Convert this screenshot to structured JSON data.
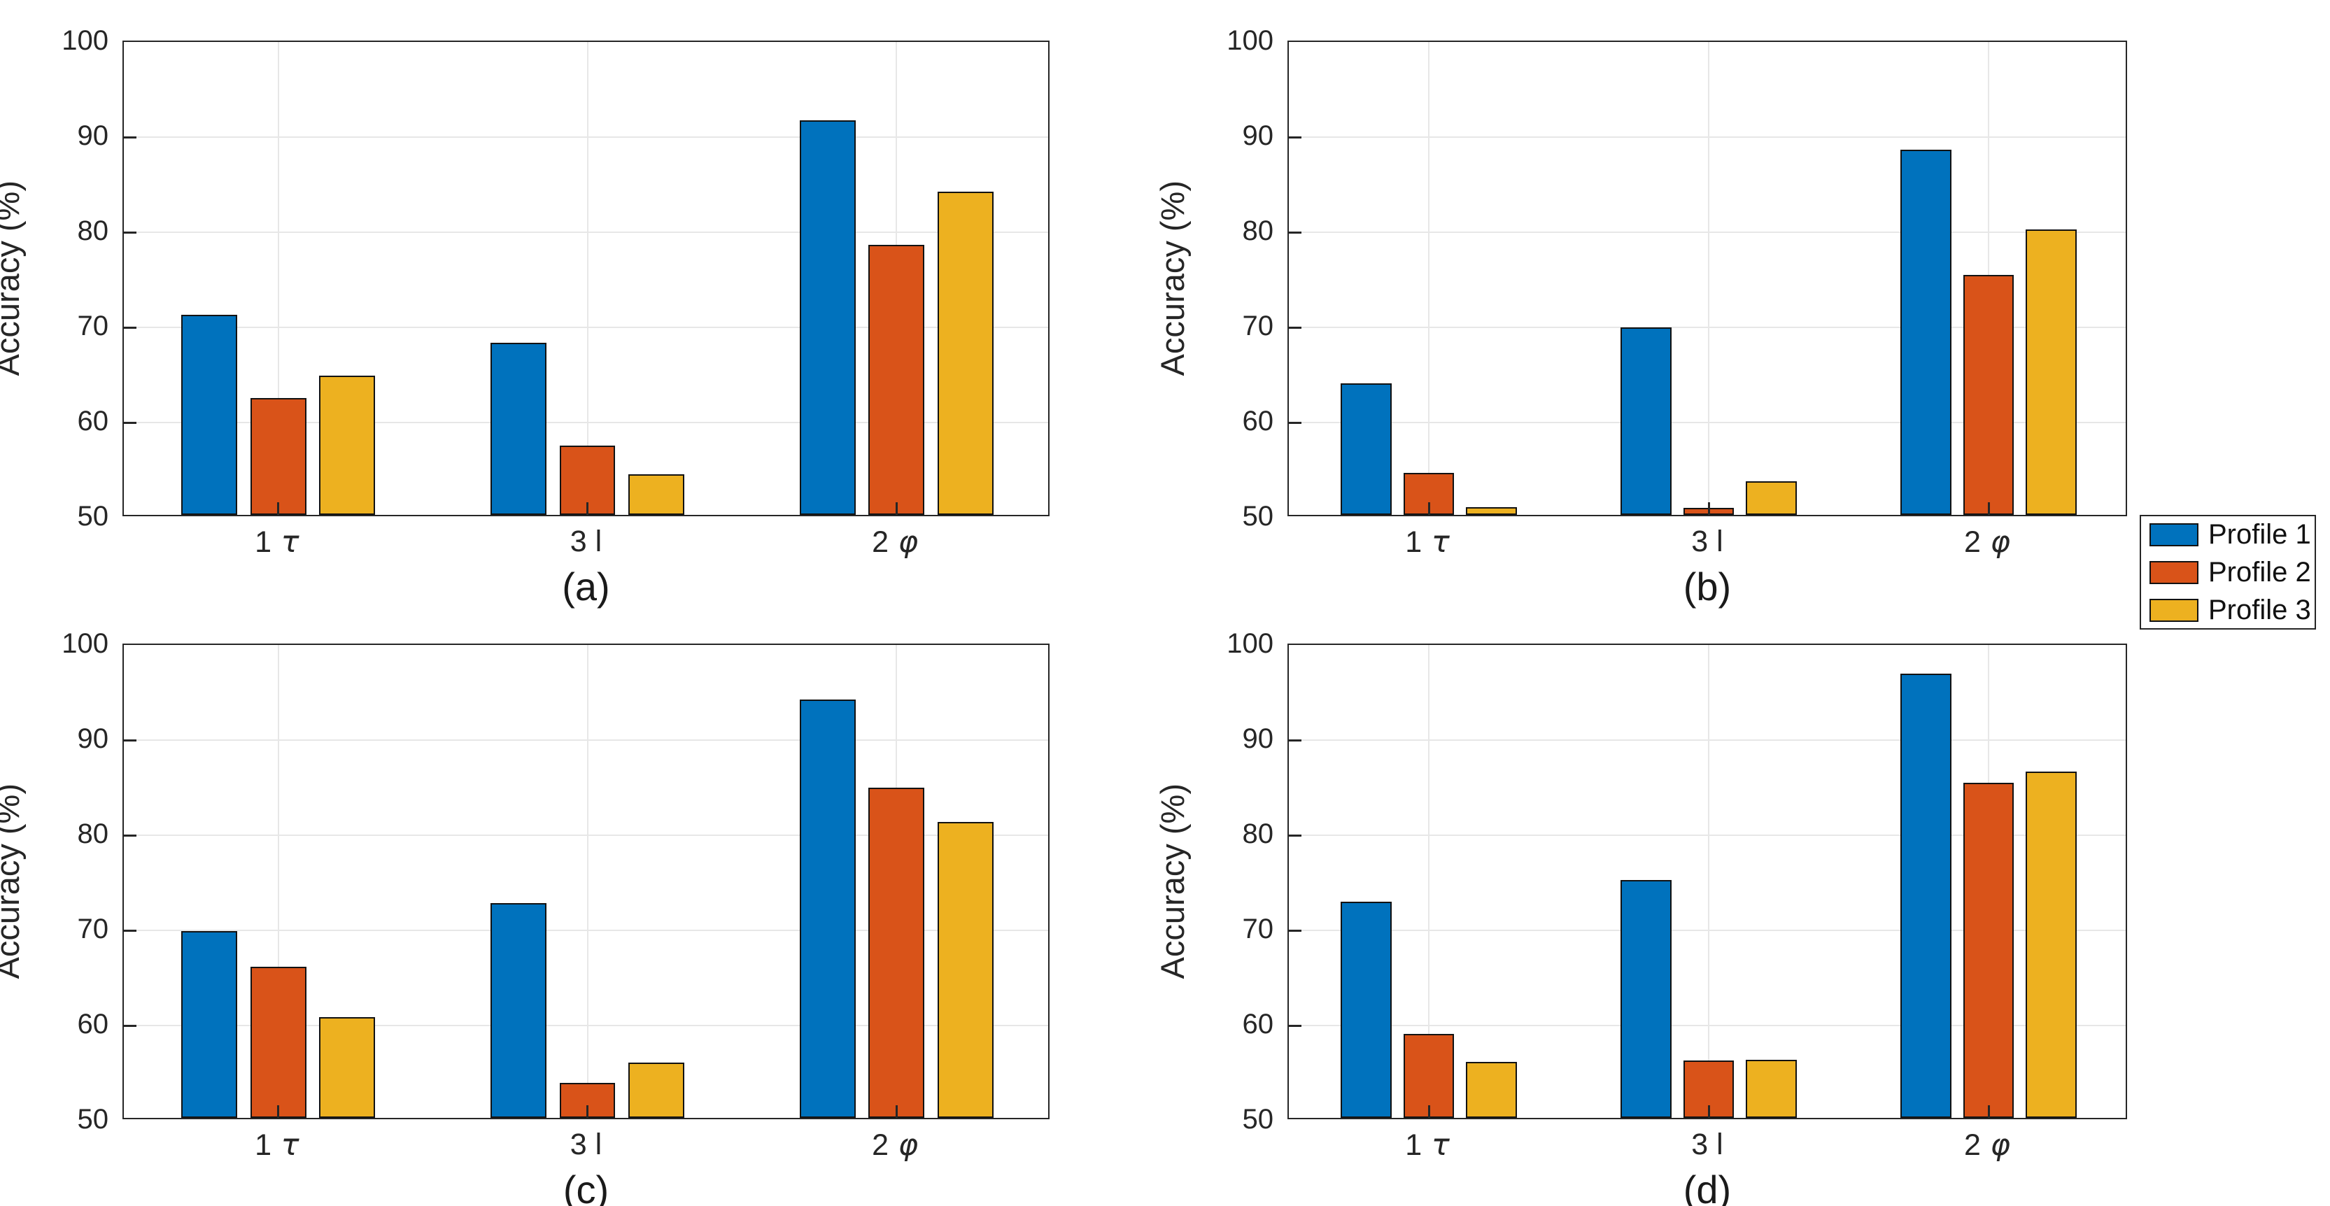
{
  "figure": {
    "ylabel": "Accuracy (%)",
    "yticks": [
      50,
      60,
      70,
      80,
      90,
      100
    ],
    "ylim": [
      50,
      100
    ],
    "categories": [
      "1 τ",
      "3 l",
      "2 φ"
    ],
    "captions": [
      "(a)",
      "(b)",
      "(c)",
      "(d)"
    ]
  },
  "colors": {
    "profile1": "#0072BD",
    "profile2": "#D95319",
    "profile3": "#EDB120",
    "bar_edge": "#121212",
    "grid": "#e7e7e7",
    "axis": "#262626",
    "text": "#262626",
    "background": "#ffffff"
  },
  "legend": {
    "position": "outside-right-center",
    "items": [
      {
        "label": "Profile 1",
        "color": "#0072BD"
      },
      {
        "label": "Profile 2",
        "color": "#D95319"
      },
      {
        "label": "Profile 3",
        "color": "#EDB120"
      }
    ]
  },
  "chart_data": [
    {
      "type": "bar",
      "subplot": "(a)",
      "title": "",
      "xlabel": "",
      "ylabel": "Accuracy (%)",
      "ylim": [
        50,
        100
      ],
      "yticks": [
        50,
        60,
        70,
        80,
        90,
        100
      ],
      "grid": true,
      "categories": [
        "1 τ",
        "3 l",
        "2 φ"
      ],
      "series": [
        {
          "name": "Profile 1",
          "values": [
            71.0,
            68.1,
            91.5
          ]
        },
        {
          "name": "Profile 2",
          "values": [
            62.3,
            57.3,
            78.4
          ]
        },
        {
          "name": "Profile 3",
          "values": [
            64.6,
            54.3,
            84.0
          ]
        }
      ]
    },
    {
      "type": "bar",
      "subplot": "(b)",
      "title": "",
      "xlabel": "",
      "ylabel": "Accuracy (%)",
      "ylim": [
        50,
        100
      ],
      "yticks": [
        50,
        60,
        70,
        80,
        90,
        100
      ],
      "grid": true,
      "categories": [
        "1 τ",
        "3 l",
        "2 φ"
      ],
      "series": [
        {
          "name": "Profile 1",
          "values": [
            63.8,
            69.7,
            88.4
          ]
        },
        {
          "name": "Profile 2",
          "values": [
            54.4,
            50.7,
            75.2
          ]
        },
        {
          "name": "Profile 3",
          "values": [
            50.8,
            53.5,
            80.0
          ]
        }
      ]
    },
    {
      "type": "bar",
      "subplot": "(c)",
      "title": "",
      "xlabel": "",
      "ylabel": "Accuracy (%)",
      "ylim": [
        50,
        100
      ],
      "yticks": [
        50,
        60,
        70,
        80,
        90,
        100
      ],
      "grid": true,
      "categories": [
        "1 τ",
        "3 l",
        "2 φ"
      ],
      "series": [
        {
          "name": "Profile 1",
          "values": [
            69.6,
            72.6,
            94.0
          ]
        },
        {
          "name": "Profile 2",
          "values": [
            65.9,
            53.7,
            84.7
          ]
        },
        {
          "name": "Profile 3",
          "values": [
            60.6,
            55.8,
            81.1
          ]
        }
      ]
    },
    {
      "type": "bar",
      "subplot": "(d)",
      "title": "",
      "xlabel": "",
      "ylabel": "Accuracy (%)",
      "ylim": [
        50,
        100
      ],
      "yticks": [
        50,
        60,
        70,
        80,
        90,
        100
      ],
      "grid": true,
      "categories": [
        "1 τ",
        "3 l",
        "2 φ"
      ],
      "series": [
        {
          "name": "Profile 1",
          "values": [
            72.7,
            75.0,
            96.7
          ]
        },
        {
          "name": "Profile 2",
          "values": [
            58.8,
            56.0,
            85.2
          ]
        },
        {
          "name": "Profile 3",
          "values": [
            55.9,
            56.1,
            86.4
          ]
        }
      ]
    }
  ]
}
